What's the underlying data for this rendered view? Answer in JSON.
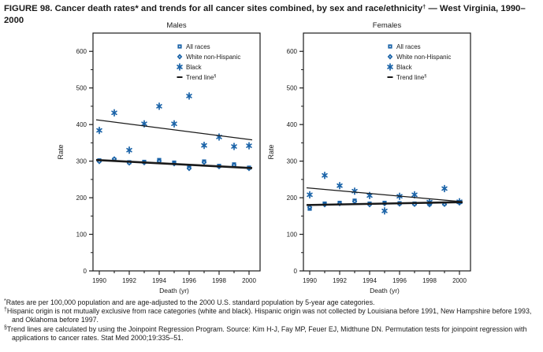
{
  "figure": {
    "title": {
      "p1": "FIGURE 98. Cancer death rates* and trends for all cancer sites combined, by sex and race/ethnicity",
      "sup": "†",
      "p2": " — West Virginia, 1990–2000"
    }
  },
  "colors": {
    "marker_blue": "#1a63a8",
    "trend_black": "#1a1a1a",
    "frame": "#1a1a1a"
  },
  "legend": [
    {
      "label": "All races",
      "marker": "square",
      "sup": ""
    },
    {
      "label": "White non-Hispanic",
      "marker": "diamond",
      "sup": ""
    },
    {
      "label": "Black",
      "marker": "asterisk",
      "sup": ""
    },
    {
      "label": "Trend line",
      "marker": "dash",
      "sup": "§"
    }
  ],
  "axes": {
    "ylabel": "Rate",
    "xlabel": "Death (yr)",
    "y_major": [
      0,
      100,
      200,
      300,
      400,
      500,
      600
    ],
    "y_minor_step": 50,
    "y_max": 650,
    "years": [
      1990,
      1991,
      1992,
      1993,
      1994,
      1995,
      1996,
      1997,
      1998,
      1999,
      2000
    ],
    "labeled_years": [
      1990,
      1992,
      1994,
      1996,
      1998,
      2000
    ]
  },
  "chart_data": [
    {
      "type": "scatter",
      "title": "Males",
      "xlabel": "Death (yr)",
      "ylabel": "Rate",
      "ylim": [
        0,
        650
      ],
      "x": [
        1990,
        1991,
        1992,
        1993,
        1994,
        1995,
        1996,
        1997,
        1998,
        1999,
        2000
      ],
      "series": [
        {
          "name": "All races",
          "marker": "square",
          "values": [
            302,
            304,
            297,
            298,
            303,
            296,
            283,
            299,
            287,
            291,
            282
          ]
        },
        {
          "name": "White non-Hispanic",
          "marker": "diamond",
          "values": [
            299,
            306,
            295,
            296,
            300,
            293,
            280,
            297,
            285,
            289,
            280
          ]
        },
        {
          "name": "Black",
          "marker": "asterisk",
          "values": [
            384,
            432,
            330,
            402,
            450,
            402,
            478,
            343,
            366,
            340,
            342
          ]
        }
      ],
      "trend_lines": [
        {
          "series": "All races",
          "start": 303,
          "end": 281,
          "style": "thick"
        },
        {
          "series": "Black",
          "start": 413,
          "end": 358,
          "style": "thin"
        }
      ]
    },
    {
      "type": "scatter",
      "title": "Females",
      "xlabel": "Death (yr)",
      "ylabel": "Rate",
      "ylim": [
        0,
        650
      ],
      "x": [
        1990,
        1991,
        1992,
        1993,
        1994,
        1995,
        1996,
        1997,
        1998,
        1999,
        2000
      ],
      "series": [
        {
          "name": "All races",
          "marker": "square",
          "values": [
            170,
            184,
            186,
            192,
            184,
            186,
            185,
            184,
            183,
            184,
            188
          ]
        },
        {
          "name": "White non-Hispanic",
          "marker": "diamond",
          "values": [
            174,
            181,
            184,
            190,
            181,
            184,
            183,
            182,
            181,
            182,
            186
          ]
        },
        {
          "name": "Black",
          "marker": "asterisk",
          "values": [
            208,
            261,
            233,
            218,
            206,
            164,
            204,
            208,
            188,
            225,
            189
          ]
        }
      ],
      "trend_lines": [
        {
          "series": "All races",
          "start": 180,
          "end": 188,
          "style": "thick"
        },
        {
          "series": "Black",
          "start": 227,
          "end": 189,
          "style": "thin"
        }
      ]
    }
  ],
  "footnotes": [
    {
      "symbol": "*",
      "text": "Rates are per 100,000 population and are age-adjusted to the 2000 U.S. standard population by 5-year age categories."
    },
    {
      "symbol": "†",
      "text": "Hispanic origin is not mutually exclusive from race categories (white and black). Hispanic origin was not collected by Louisiana before 1991, New Hampshire before 1993, and Oklahoma before 1997."
    },
    {
      "symbol": "§",
      "text": "Trend lines are calculated by using the Joinpoint Regression Program. Source: Kim H-J, Fay MP, Feuer EJ, Midthune DN. Permutation tests for joinpoint regression with applications to cancer rates. Stat Med 2000;19:335–51."
    }
  ]
}
